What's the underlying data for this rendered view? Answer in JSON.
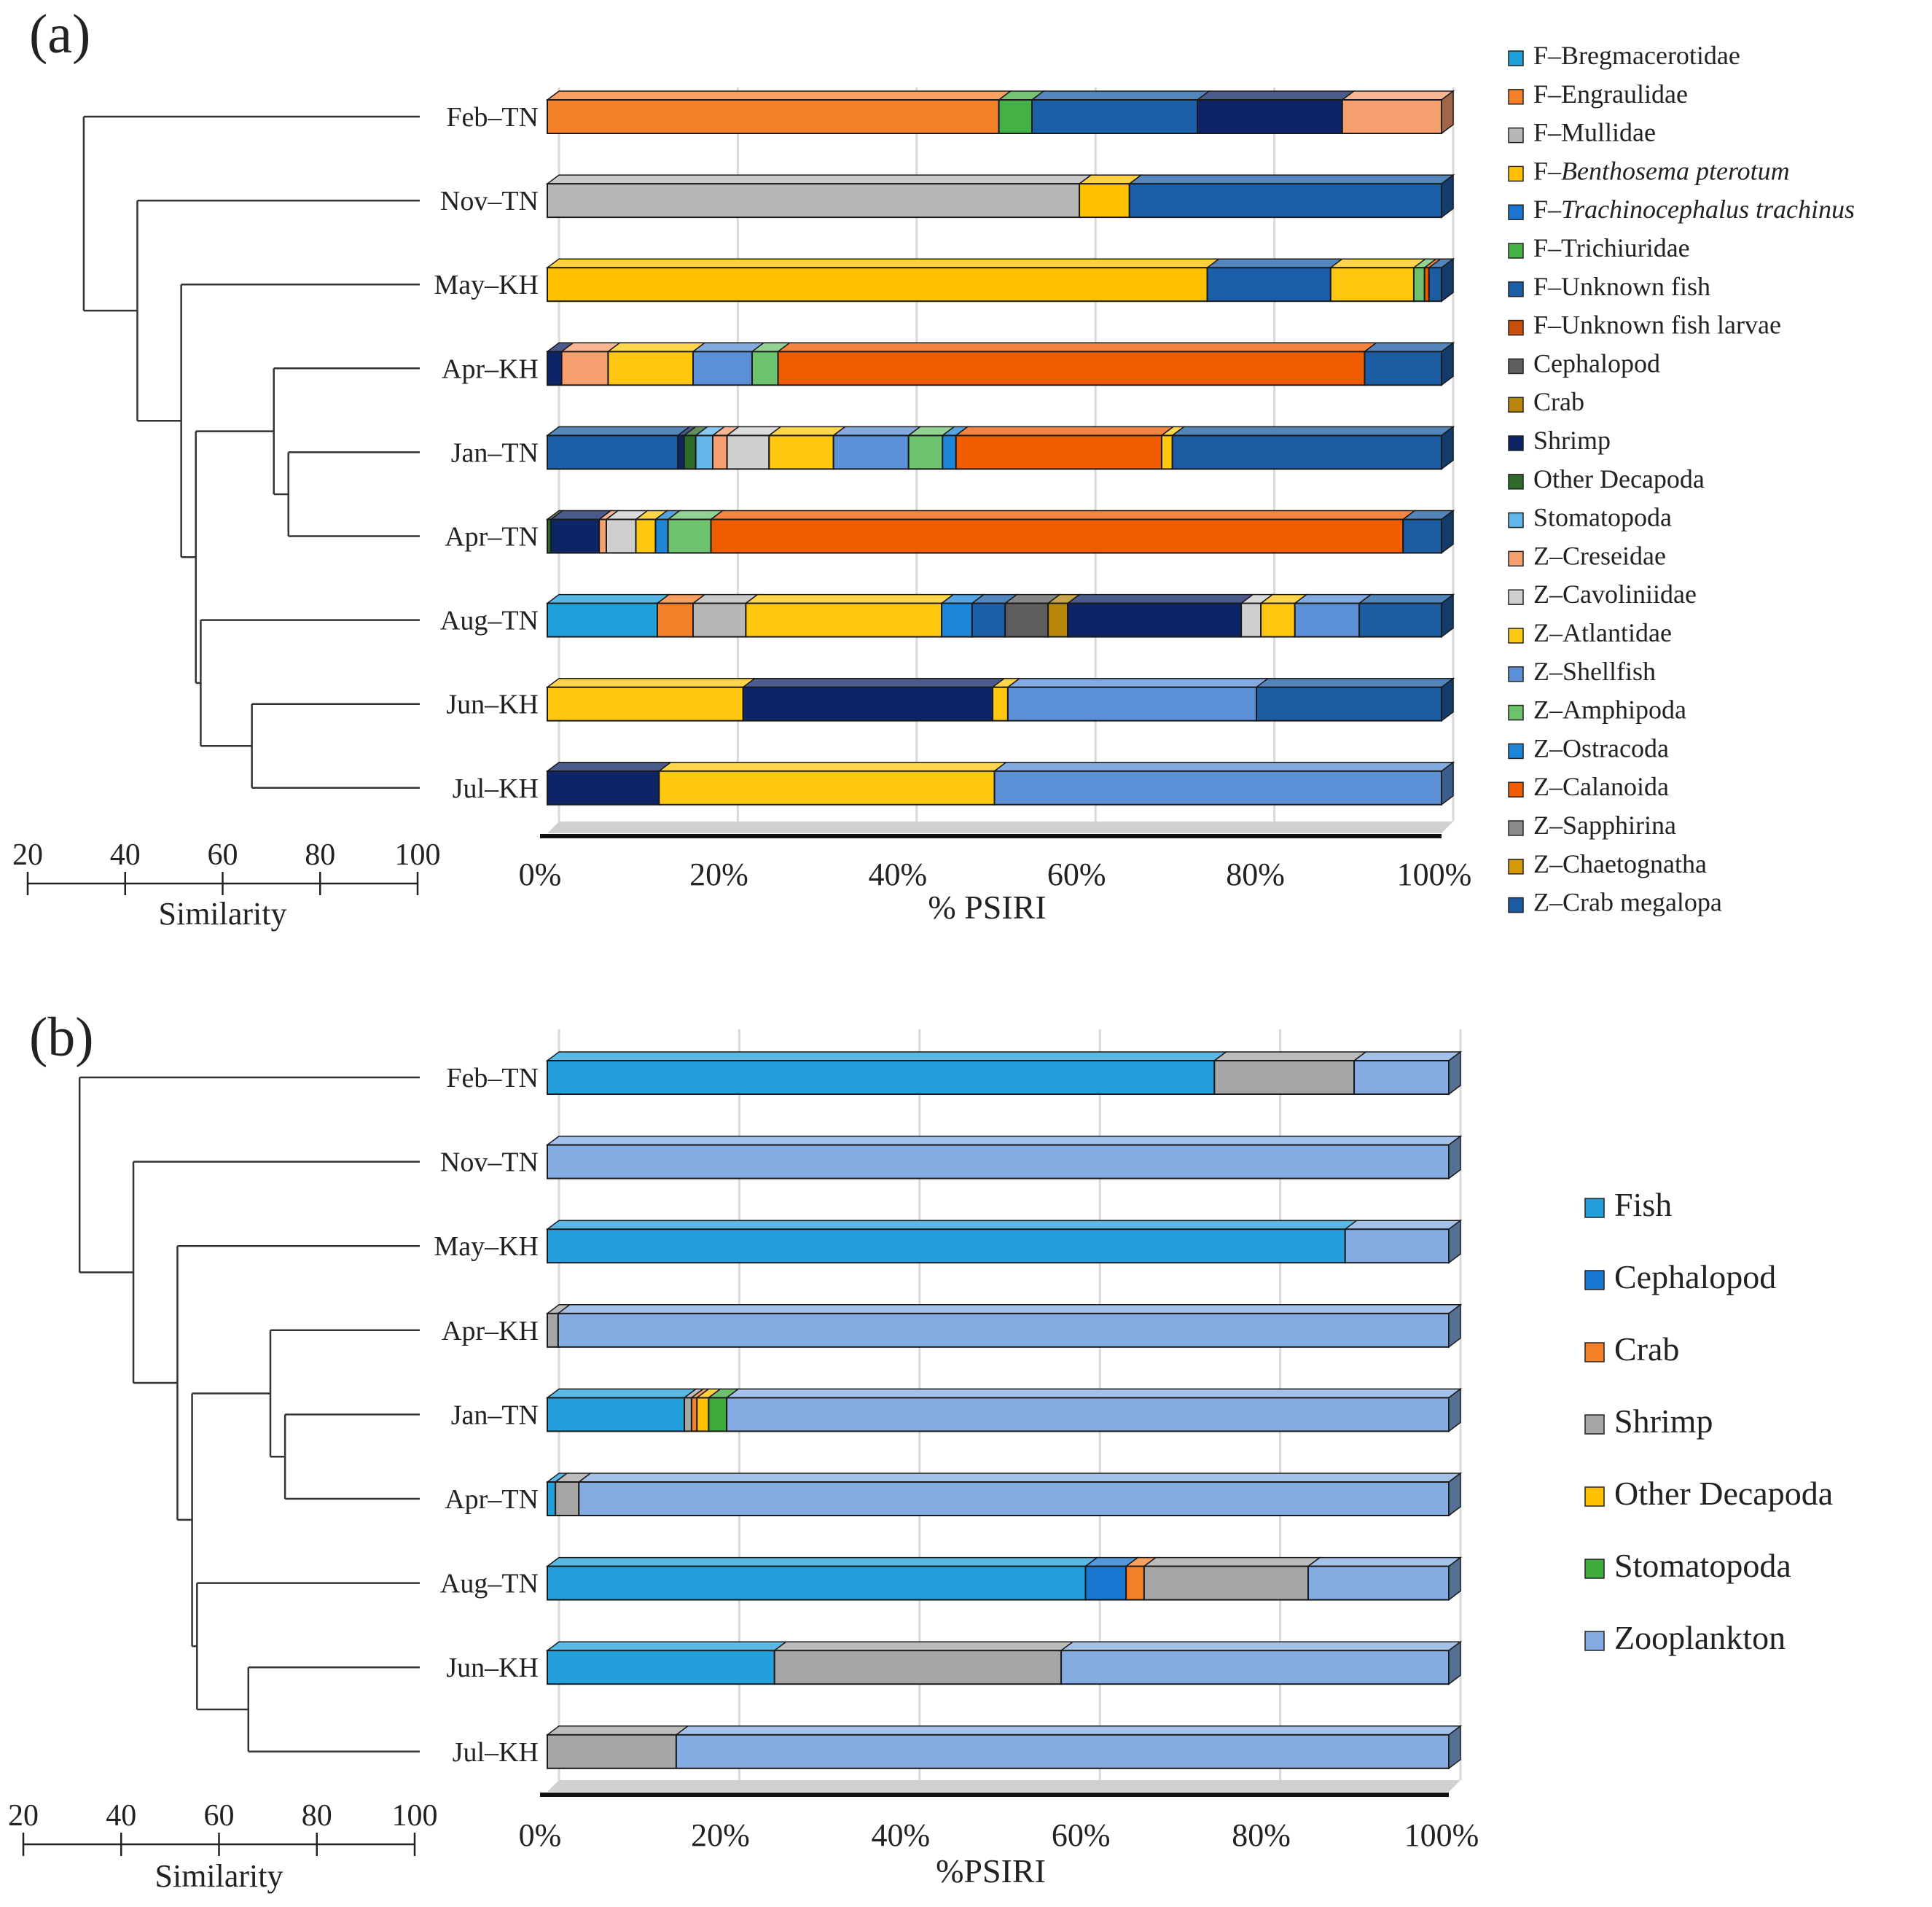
{
  "chart_data": [
    {
      "panel_label": "(a)",
      "type": "stacked-bar",
      "orientation": "horizontal",
      "xlabel": "% PSIRI",
      "x_ticks": [
        "0%",
        "20%",
        "40%",
        "60%",
        "80%",
        "100%"
      ],
      "xlim": [
        0,
        100
      ],
      "categories": [
        "Feb–TN",
        "Nov–TN",
        "May–KH",
        "Apr–KH",
        "Jan–TN",
        "Apr–TN",
        "Aug–TN",
        "Jun–KH",
        "Jul–KH"
      ],
      "dendrogram": {
        "xlabel": "Similarity",
        "ticks": [
          "20",
          "40",
          "60",
          "80",
          "100"
        ],
        "merges": [
          {
            "join": [
              "Apr–TN",
              "Jan–TN"
            ],
            "similarity": 73.5
          },
          {
            "join": [
              "Jul–KH",
              "Jun–KH"
            ],
            "similarity": 66
          },
          {
            "join": [
              "Apr–KH",
              "Jan–TN+Apr–TN"
            ],
            "similarity": 70.5
          },
          {
            "join": [
              "Aug–TN",
              "Jun–KH+Jul–KH"
            ],
            "similarity": 55.5
          },
          {
            "join": [
              "Apr–KH group",
              "Aug–TN group"
            ],
            "similarity": 54.5
          },
          {
            "join": [
              "May–KH",
              "rest"
            ],
            "similarity": 51.5
          },
          {
            "join": [
              "Nov–TN",
              "rest"
            ],
            "similarity": 42.5
          },
          {
            "join": [
              "Feb–TN",
              "rest"
            ],
            "similarity": 31.5
          }
        ]
      },
      "legend": [
        {
          "name": "F–Bregmacerotidae",
          "color": "#1fa0da"
        },
        {
          "name": "F–Engraulidae",
          "color": "#f5802a"
        },
        {
          "name": "F–Mullidae",
          "color": "#b7b7b7"
        },
        {
          "name": "F–Benthosema pterotum",
          "prefix": "F–",
          "italic": "Benthosema pterotum",
          "color": "#ffc000"
        },
        {
          "name": "F–Trachinocephalus trachinus",
          "prefix": "F–",
          "italic": "Trachinocephalus trachinus",
          "color": "#1876d0"
        },
        {
          "name": "F–Trichiuridae",
          "color": "#45b046"
        },
        {
          "name": "F–Unknown fish",
          "color": "#1a5fa8"
        },
        {
          "name": "F–Unknown fish larvae",
          "color": "#c4500a"
        },
        {
          "name": "Cephalopod",
          "color": "#5e5e5e"
        },
        {
          "name": "Crab",
          "color": "#b8860b"
        },
        {
          "name": "Shrimp",
          "color": "#0d2466"
        },
        {
          "name": "Other Decapoda",
          "color": "#2e6b2a"
        },
        {
          "name": "Stomatopoda",
          "color": "#62b6ea"
        },
        {
          "name": "Z–Creseidae",
          "color": "#f59f6e"
        },
        {
          "name": "Z–Cavoliniidae",
          "color": "#cfcfcf"
        },
        {
          "name": "Z–Atlantidae",
          "color": "#ffc70f"
        },
        {
          "name": "Z–Shellfish",
          "color": "#5b8fd6"
        },
        {
          "name": "Z–Amphipoda",
          "color": "#6dc36d"
        },
        {
          "name": "Z–Ostracoda",
          "color": "#1e86d8"
        },
        {
          "name": "Z–Calanoida",
          "color": "#f05c00"
        },
        {
          "name": "Z–Sapphirina",
          "color": "#8c8c8c"
        },
        {
          "name": "Z–Chaetognatha",
          "color": "#d49a0c"
        },
        {
          "name": "Z–Crab megalopa",
          "color": "#1b5ca3"
        }
      ],
      "bars": [
        [
          {
            "c": 1,
            "v": 50.5
          },
          {
            "c": 5,
            "v": 3.7
          },
          {
            "c": 6,
            "v": 18.5
          },
          {
            "c": 10,
            "v": 16.2
          },
          {
            "c": 13,
            "v": 11.1
          }
        ],
        [
          {
            "c": 2,
            "v": 59.5
          },
          {
            "c": 3,
            "v": 5.6
          },
          {
            "c": 6,
            "v": 34.9
          }
        ],
        [
          {
            "c": 3,
            "v": 73.8
          },
          {
            "c": 6,
            "v": 13.8
          },
          {
            "c": 15,
            "v": 9.3
          },
          {
            "c": 17,
            "v": 1.2
          },
          {
            "c": 19,
            "v": 0.5
          },
          {
            "c": 22,
            "v": 1.4
          }
        ],
        [
          {
            "c": 10,
            "v": 1.6
          },
          {
            "c": 13,
            "v": 5.2
          },
          {
            "c": 15,
            "v": 9.5
          },
          {
            "c": 16,
            "v": 6.6
          },
          {
            "c": 17,
            "v": 2.9
          },
          {
            "c": 19,
            "v": 65.6
          },
          {
            "c": 22,
            "v": 8.6
          }
        ],
        [
          {
            "c": 6,
            "v": 14.6
          },
          {
            "c": 10,
            "v": 0.7
          },
          {
            "c": 11,
            "v": 1.3
          },
          {
            "c": 12,
            "v": 1.9
          },
          {
            "c": 13,
            "v": 1.6
          },
          {
            "c": 14,
            "v": 4.7
          },
          {
            "c": 15,
            "v": 7.2
          },
          {
            "c": 16,
            "v": 8.4
          },
          {
            "c": 17,
            "v": 3.8
          },
          {
            "c": 18,
            "v": 1.5
          },
          {
            "c": 19,
            "v": 23.0
          },
          {
            "c": 15,
            "v": 1.2
          },
          {
            "c": 22,
            "v": 30.1
          }
        ],
        [
          {
            "c": 11,
            "v": 0.4
          },
          {
            "c": 10,
            "v": 5.4
          },
          {
            "c": 13,
            "v": 0.8
          },
          {
            "c": 14,
            "v": 3.3
          },
          {
            "c": 15,
            "v": 2.2
          },
          {
            "c": 18,
            "v": 1.4
          },
          {
            "c": 17,
            "v": 4.8
          },
          {
            "c": 19,
            "v": 77.4
          },
          {
            "c": 22,
            "v": 4.3
          }
        ],
        [
          {
            "c": 0,
            "v": 12.3
          },
          {
            "c": 1,
            "v": 4.0
          },
          {
            "c": 2,
            "v": 5.9
          },
          {
            "c": 15,
            "v": 21.9
          },
          {
            "c": 18,
            "v": 3.4
          },
          {
            "c": 6,
            "v": 3.7
          },
          {
            "c": 8,
            "v": 4.8
          },
          {
            "c": 9,
            "v": 2.2
          },
          {
            "c": 10,
            "v": 19.4
          },
          {
            "c": 14,
            "v": 2.2
          },
          {
            "c": 15,
            "v": 3.8
          },
          {
            "c": 16,
            "v": 7.2
          },
          {
            "c": 22,
            "v": 9.2
          }
        ],
        [
          {
            "c": 15,
            "v": 21.9
          },
          {
            "c": 10,
            "v": 27.9
          },
          {
            "c": 15,
            "v": 1.7
          },
          {
            "c": 16,
            "v": 27.8
          },
          {
            "c": 22,
            "v": 20.7
          }
        ],
        [
          {
            "c": 10,
            "v": 12.5
          },
          {
            "c": 15,
            "v": 37.5
          },
          {
            "c": 16,
            "v": 50.0
          }
        ]
      ]
    },
    {
      "panel_label": "(b)",
      "type": "stacked-bar",
      "orientation": "horizontal",
      "xlabel": "%PSIRI",
      "x_ticks": [
        "0%",
        "20%",
        "40%",
        "60%",
        "80%",
        "100%"
      ],
      "xlim": [
        0,
        100
      ],
      "categories": [
        "Feb–TN",
        "Nov–TN",
        "May–KH",
        "Apr–KH",
        "Jan–TN",
        "Apr–TN",
        "Aug–TN",
        "Jun–KH",
        "Jul–KH"
      ],
      "dendrogram": {
        "xlabel": "Similarity",
        "ticks": [
          "20",
          "40",
          "60",
          "80",
          "100"
        ]
      },
      "legend": [
        {
          "name": "Fish",
          "color": "#23a0dc"
        },
        {
          "name": "Cephalopod",
          "color": "#1876d0"
        },
        {
          "name": "Crab",
          "color": "#f5802a"
        },
        {
          "name": "Shrimp",
          "color": "#a6a6a6"
        },
        {
          "name": "Other Decapoda",
          "color": "#ffc000"
        },
        {
          "name": "Stomatopoda",
          "color": "#3fab3c"
        },
        {
          "name": "Zooplankton",
          "color": "#84ace2"
        }
      ],
      "bars": [
        [
          {
            "c": 0,
            "v": 74.0
          },
          {
            "c": 3,
            "v": 15.5
          },
          {
            "c": 6,
            "v": 10.5
          }
        ],
        [
          {
            "c": 6,
            "v": 100
          }
        ],
        [
          {
            "c": 0,
            "v": 88.5
          },
          {
            "c": 6,
            "v": 11.5
          }
        ],
        [
          {
            "c": 3,
            "v": 1.2
          },
          {
            "c": 6,
            "v": 98.8
          }
        ],
        [
          {
            "c": 0,
            "v": 15.2
          },
          {
            "c": 3,
            "v": 0.8
          },
          {
            "c": 2,
            "v": 0.6
          },
          {
            "c": 4,
            "v": 1.3
          },
          {
            "c": 5,
            "v": 2.0
          },
          {
            "c": 6,
            "v": 80.1
          }
        ],
        [
          {
            "c": 0,
            "v": 0.9
          },
          {
            "c": 3,
            "v": 2.6
          },
          {
            "c": 6,
            "v": 96.5
          }
        ],
        [
          {
            "c": 0,
            "v": 59.7
          },
          {
            "c": 1,
            "v": 4.5
          },
          {
            "c": 2,
            "v": 2.0
          },
          {
            "c": 3,
            "v": 18.2
          },
          {
            "c": 6,
            "v": 15.6
          }
        ],
        [
          {
            "c": 0,
            "v": 25.2
          },
          {
            "c": 3,
            "v": 31.8
          },
          {
            "c": 6,
            "v": 43.0
          }
        ],
        [
          {
            "c": 3,
            "v": 14.3
          },
          {
            "c": 6,
            "v": 85.7
          }
        ]
      ]
    }
  ]
}
